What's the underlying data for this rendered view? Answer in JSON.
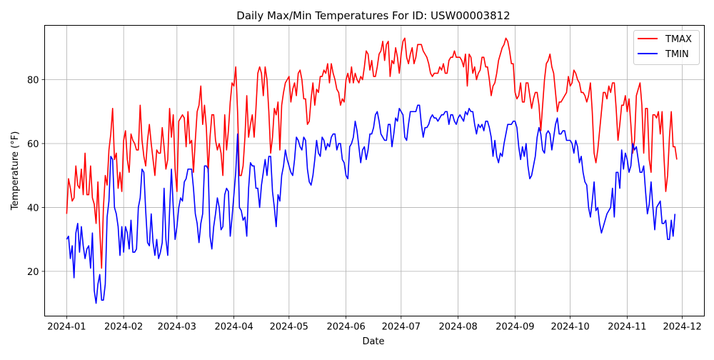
{
  "chart_data": {
    "type": "line",
    "title": "Daily Max/Min Temperatures For ID: USW00003812",
    "xlabel": "Date",
    "ylabel": "Temperature (°F)",
    "x_ticks": [
      "2024-01",
      "2024-02",
      "2024-03",
      "2024-04",
      "2024-05",
      "2024-06",
      "2024-07",
      "2024-08",
      "2024-09",
      "2024-10",
      "2024-11",
      "2024-12"
    ],
    "y_ticks": [
      20,
      40,
      60,
      80
    ],
    "xlim": [
      "2023-12-20",
      "2024-12-13"
    ],
    "ylim": [
      6,
      97
    ],
    "grid": true,
    "legend_position": "upper right",
    "x_start": "2024-01-01",
    "series": [
      {
        "name": "TMAX",
        "color": "#ff0000",
        "values": [
          38,
          49,
          46,
          42,
          43,
          53,
          47,
          46,
          52,
          44,
          57,
          44,
          44,
          53,
          43,
          41,
          35,
          48,
          33,
          21,
          40,
          50,
          47,
          58,
          63,
          71,
          55,
          57,
          46,
          51,
          45,
          61,
          64,
          55,
          51,
          63,
          61,
          60,
          58,
          58,
          72,
          61,
          56,
          53,
          61,
          66,
          60,
          55,
          50,
          58,
          57,
          57,
          65,
          59,
          52,
          55,
          71,
          62,
          69,
          52,
          45,
          67,
          68,
          69,
          68,
          59,
          70,
          60,
          61,
          51,
          61,
          70,
          72,
          78,
          66,
          72,
          65,
          51,
          62,
          69,
          69,
          61,
          58,
          60,
          57,
          50,
          69,
          58,
          64,
          73,
          79,
          78,
          84,
          70,
          50,
          50,
          53,
          62,
          75,
          62,
          66,
          69,
          62,
          71,
          82,
          84,
          82,
          75,
          84,
          80,
          70,
          57,
          62,
          71,
          69,
          73,
          58,
          72,
          76,
          79,
          80,
          81,
          73,
          77,
          79,
          75,
          82,
          83,
          80,
          74,
          74,
          66,
          67,
          74,
          79,
          72,
          77,
          76,
          81,
          81,
          83,
          82,
          85,
          79,
          85,
          82,
          80,
          77,
          76,
          72,
          74,
          73,
          80,
          82,
          79,
          84,
          79,
          82,
          80,
          79,
          81,
          80,
          84,
          89,
          88,
          83,
          86,
          81,
          81,
          84,
          88,
          89,
          92,
          86,
          91,
          92,
          81,
          86,
          85,
          90,
          87,
          82,
          88,
          92,
          93,
          87,
          85,
          88,
          90,
          85,
          87,
          91,
          91,
          91,
          89,
          88,
          87,
          85,
          82,
          81,
          82,
          82,
          82,
          84,
          83,
          85,
          82,
          82,
          86,
          87,
          87,
          89,
          87,
          87,
          87,
          86,
          84,
          88,
          78,
          88,
          87,
          82,
          84,
          80,
          82,
          83,
          87,
          87,
          84,
          84,
          80,
          75,
          78,
          79,
          82,
          86,
          88,
          90,
          91,
          93,
          92,
          89,
          85,
          85,
          76,
          74,
          75,
          79,
          73,
          73,
          79,
          79,
          75,
          71,
          74,
          76,
          76,
          72,
          64,
          72,
          80,
          85,
          86,
          88,
          84,
          82,
          76,
          70,
          73,
          73,
          74,
          75,
          76,
          81,
          78,
          79,
          83,
          82,
          80,
          79,
          76,
          76,
          75,
          73,
          75,
          79,
          70,
          57,
          54,
          58,
          64,
          70,
          76,
          76,
          74,
          78,
          76,
          79,
          79,
          71,
          61,
          66,
          72,
          72,
          75,
          70,
          74,
          66,
          57,
          61,
          75,
          77,
          79,
          72,
          57,
          71,
          71,
          55,
          51,
          69,
          69,
          68,
          70,
          63,
          70,
          56,
          45,
          50,
          62,
          70,
          59,
          59,
          55
        ]
      },
      {
        "name": "TMIN",
        "color": "#0000ff",
        "values": [
          30,
          31,
          24,
          28,
          18,
          32,
          35,
          26,
          34,
          28,
          24,
          27,
          28,
          21,
          32,
          14,
          10,
          16,
          19,
          11,
          11,
          16,
          37,
          42,
          56,
          55,
          40,
          38,
          34,
          25,
          34,
          26,
          34,
          32,
          27,
          36,
          26,
          26,
          27,
          40,
          43,
          52,
          51,
          39,
          29,
          28,
          38,
          29,
          25,
          30,
          24,
          26,
          29,
          46,
          30,
          25,
          39,
          52,
          40,
          30,
          34,
          40,
          43,
          42,
          48,
          49,
          52,
          52,
          52,
          46,
          38,
          35,
          29,
          35,
          38,
          53,
          53,
          52,
          31,
          27,
          34,
          38,
          43,
          40,
          33,
          34,
          44,
          46,
          45,
          31,
          37,
          44,
          51,
          63,
          40,
          39,
          36,
          37,
          31,
          46,
          54,
          53,
          53,
          46,
          46,
          40,
          47,
          51,
          55,
          50,
          56,
          56,
          45,
          40,
          34,
          44,
          42,
          50,
          53,
          58,
          55,
          53,
          51,
          50,
          55,
          62,
          61,
          59,
          58,
          62,
          61,
          52,
          48,
          47,
          50,
          55,
          61,
          57,
          56,
          62,
          61,
          58,
          60,
          59,
          62,
          63,
          63,
          58,
          60,
          60,
          55,
          54,
          50,
          49,
          59,
          60,
          62,
          67,
          64,
          59,
          54,
          58,
          59,
          55,
          58,
          63,
          63,
          65,
          69,
          70,
          67,
          63,
          62,
          61,
          61,
          66,
          66,
          59,
          63,
          68,
          67,
          71,
          70,
          69,
          62,
          61,
          66,
          70,
          70,
          70,
          70,
          72,
          72,
          66,
          62,
          65,
          65,
          66,
          68,
          69,
          68,
          68,
          67,
          68,
          69,
          69,
          70,
          70,
          66,
          69,
          69,
          67,
          66,
          68,
          69,
          68,
          67,
          70,
          69,
          71,
          70,
          70,
          66,
          63,
          66,
          65,
          66,
          64,
          67,
          67,
          65,
          62,
          56,
          61,
          56,
          54,
          57,
          56,
          60,
          63,
          66,
          66,
          66,
          67,
          67,
          65,
          59,
          55,
          59,
          56,
          60,
          53,
          49,
          50,
          53,
          56,
          62,
          65,
          63,
          58,
          57,
          63,
          64,
          63,
          58,
          62,
          66,
          68,
          63,
          63,
          64,
          64,
          61,
          61,
          61,
          60,
          57,
          61,
          59,
          54,
          56,
          51,
          48,
          47,
          40,
          37,
          42,
          48,
          39,
          40,
          35,
          32,
          34,
          36,
          38,
          39,
          40,
          46,
          37,
          51,
          51,
          46,
          58,
          52,
          57,
          55,
          51,
          53,
          60,
          58,
          59,
          55,
          51,
          51,
          53,
          45,
          38,
          41,
          48,
          40,
          33,
          40,
          41,
          42,
          35,
          35,
          36,
          30,
          30,
          36,
          31,
          38
        ]
      }
    ]
  }
}
